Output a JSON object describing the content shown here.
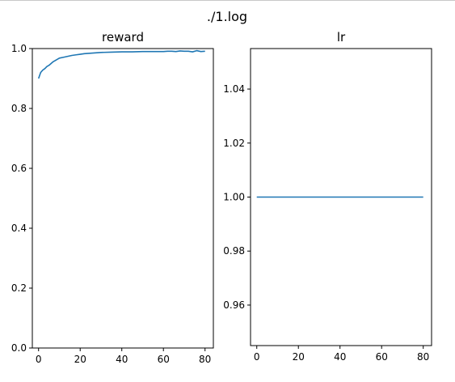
{
  "figure": {
    "title": "./1.log"
  },
  "colors": {
    "line": "#1f77b4",
    "axes": "#000000",
    "background": "#ffffff"
  },
  "chart_data": [
    {
      "type": "line",
      "title": "reward",
      "xlabel": "",
      "ylabel": "",
      "xlim": [
        -3,
        84
      ],
      "ylim": [
        0.0,
        1.0
      ],
      "x_ticks": [
        0,
        20,
        40,
        60,
        80
      ],
      "x_tick_labels": [
        "0",
        "20",
        "40",
        "60",
        "80"
      ],
      "y_ticks": [
        0.0,
        0.2,
        0.4,
        0.6,
        0.8,
        1.0
      ],
      "y_tick_labels": [
        "0.0",
        "0.2",
        "0.4",
        "0.6",
        "0.8",
        "1.0"
      ],
      "grid": false,
      "series": [
        {
          "x": [
            0,
            1,
            2,
            3,
            4,
            5,
            6,
            7,
            8,
            9,
            10,
            12,
            14,
            16,
            18,
            20,
            22,
            24,
            26,
            28,
            30,
            35,
            40,
            45,
            50,
            55,
            60,
            62,
            64,
            66,
            68,
            70,
            72,
            74,
            76,
            78,
            80
          ],
          "y": [
            0.9,
            0.92,
            0.928,
            0.933,
            0.94,
            0.944,
            0.95,
            0.956,
            0.96,
            0.964,
            0.968,
            0.971,
            0.974,
            0.977,
            0.979,
            0.981,
            0.983,
            0.984,
            0.985,
            0.986,
            0.987,
            0.988,
            0.989,
            0.989,
            0.99,
            0.99,
            0.99,
            0.991,
            0.991,
            0.99,
            0.992,
            0.991,
            0.991,
            0.989,
            0.993,
            0.99,
            0.991
          ]
        }
      ]
    },
    {
      "type": "line",
      "title": "lr",
      "xlabel": "",
      "ylabel": "",
      "xlim": [
        -3,
        84
      ],
      "ylim": [
        0.945,
        1.055
      ],
      "x_ticks": [
        0,
        20,
        40,
        60,
        80
      ],
      "x_tick_labels": [
        "0",
        "20",
        "40",
        "60",
        "80"
      ],
      "y_ticks": [
        0.96,
        0.98,
        1.0,
        1.02,
        1.04
      ],
      "y_tick_labels": [
        "0.96",
        "0.98",
        "1.00",
        "1.02",
        "1.04"
      ],
      "grid": false,
      "series": [
        {
          "x": [
            0,
            80
          ],
          "y": [
            1.0,
            1.0
          ]
        }
      ]
    }
  ]
}
